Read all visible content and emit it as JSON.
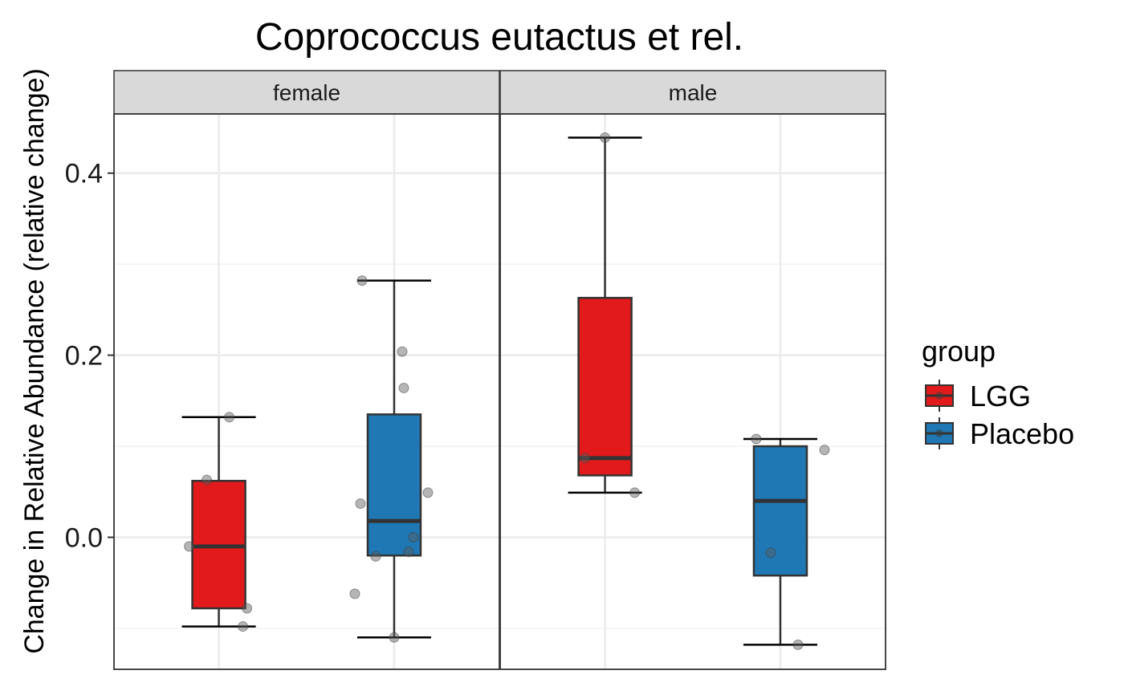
{
  "chart_data": {
    "type": "box",
    "title": "Coprococcus eutactus et rel.",
    "ylabel": "Change in Relative Abundance (relative change)",
    "xlabel": "",
    "ylim": [
      -0.145,
      0.465
    ],
    "yticks": [
      0.0,
      0.2,
      0.4
    ],
    "ytick_labels": [
      "0.0",
      "0.2",
      "0.4"
    ],
    "grid": true,
    "legend": {
      "title": "group",
      "placement": "right",
      "entries": [
        {
          "label": "LGG",
          "color": "#E31A1C"
        },
        {
          "label": "Placebo",
          "color": "#1F78B4"
        }
      ]
    },
    "facets": [
      {
        "label": "female",
        "boxes": [
          {
            "group": "LGG",
            "color": "#E31A1C",
            "whisker_low": -0.098,
            "q1": -0.078,
            "median": -0.01,
            "q3": 0.062,
            "whisker_high": 0.132,
            "points": [
              [
                -0.37,
                -0.01
              ],
              [
                -0.15,
                0.063
              ],
              [
                0.13,
                0.132
              ],
              [
                0.35,
                -0.078
              ],
              [
                0.3,
                -0.098
              ]
            ]
          },
          {
            "group": "Placebo",
            "color": "#1F78B4",
            "whisker_low": -0.11,
            "q1": -0.02,
            "median": 0.018,
            "q3": 0.135,
            "whisker_high": 0.282,
            "points": [
              [
                -0.4,
                0.282
              ],
              [
                0.1,
                0.204
              ],
              [
                0.12,
                0.164
              ],
              [
                -0.42,
                0.037
              ],
              [
                0.42,
                0.049
              ],
              [
                0.24,
                0.0
              ],
              [
                0.18,
                -0.016
              ],
              [
                -0.23,
                -0.021
              ],
              [
                -0.49,
                -0.062
              ],
              [
                0.0,
                -0.11
              ]
            ]
          }
        ]
      },
      {
        "label": "male",
        "boxes": [
          {
            "group": "LGG",
            "color": "#E31A1C",
            "whisker_low": 0.049,
            "q1": 0.068,
            "median": 0.087,
            "q3": 0.263,
            "whisker_high": 0.439,
            "points": [
              [
                0.0,
                0.439
              ],
              [
                -0.25,
                0.087
              ],
              [
                0.37,
                0.049
              ]
            ]
          },
          {
            "group": "Placebo",
            "color": "#1F78B4",
            "whisker_low": -0.118,
            "q1": -0.042,
            "median": 0.04,
            "q3": 0.1,
            "whisker_high": 0.108,
            "points": [
              [
                -0.3,
                0.108
              ],
              [
                0.55,
                0.096
              ],
              [
                -0.12,
                -0.017
              ],
              [
                0.22,
                -0.118
              ]
            ]
          }
        ]
      }
    ]
  }
}
